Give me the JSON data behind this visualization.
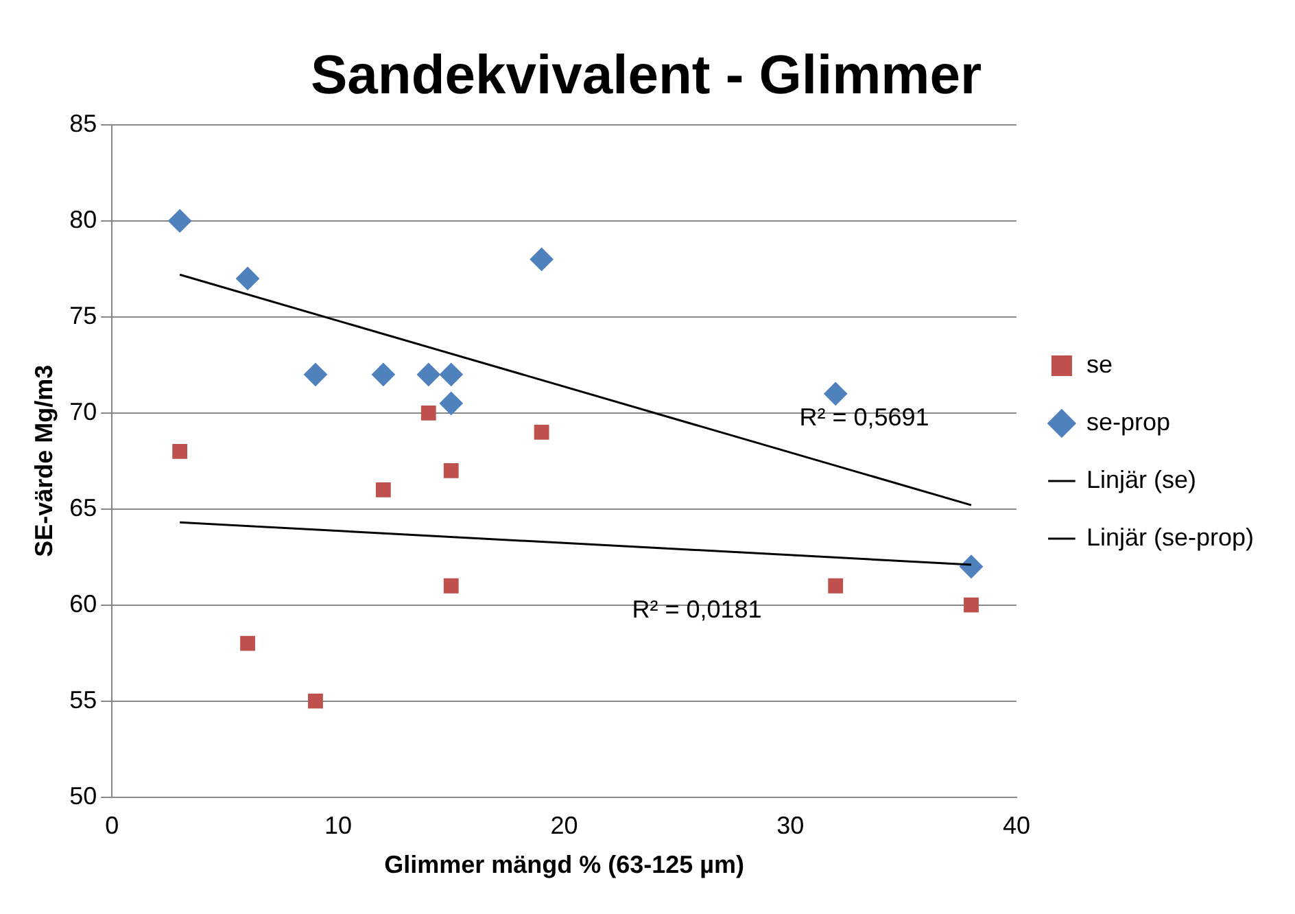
{
  "chart_data": {
    "type": "scatter",
    "title": "Sandekvivalent - Glimmer",
    "xlabel": "Glimmer mängd % (63-125 µm)",
    "ylabel": "SE-värde Mg/m3",
    "xlim": [
      0,
      40
    ],
    "xticks": [
      0,
      10,
      20,
      30,
      40
    ],
    "ylim": [
      50,
      85
    ],
    "yticks": [
      50,
      55,
      60,
      65,
      70,
      75,
      80,
      85
    ],
    "grid": "y",
    "legend": "right",
    "series": [
      {
        "name": "se",
        "type": "scatter",
        "marker": "square",
        "color": "#c0504d",
        "x": [
          3,
          6,
          9,
          12,
          14,
          15,
          15,
          19,
          32,
          38
        ],
        "values": [
          68,
          58,
          55,
          66,
          70,
          67,
          61,
          69,
          61,
          60
        ]
      },
      {
        "name": "se-prop",
        "type": "scatter",
        "marker": "diamond",
        "color": "#4f81bd",
        "x": [
          3,
          6,
          9,
          12,
          14,
          15,
          15,
          19,
          32,
          38
        ],
        "values": [
          80,
          77,
          72,
          72,
          72,
          72,
          70.5,
          78,
          71,
          62
        ]
      },
      {
        "name": "Linjär (se)",
        "type": "line",
        "marker": "none",
        "color": "#000000",
        "x": [
          3,
          38
        ],
        "values": [
          64.3,
          62.1
        ]
      },
      {
        "name": "Linjär (se-prop)",
        "type": "line",
        "marker": "none",
        "color": "#000000",
        "x": [
          3,
          38
        ],
        "values": [
          77.2,
          65.2
        ]
      }
    ],
    "annotations": [
      "R² = 0,5691",
      "R² = 0,0181"
    ]
  }
}
